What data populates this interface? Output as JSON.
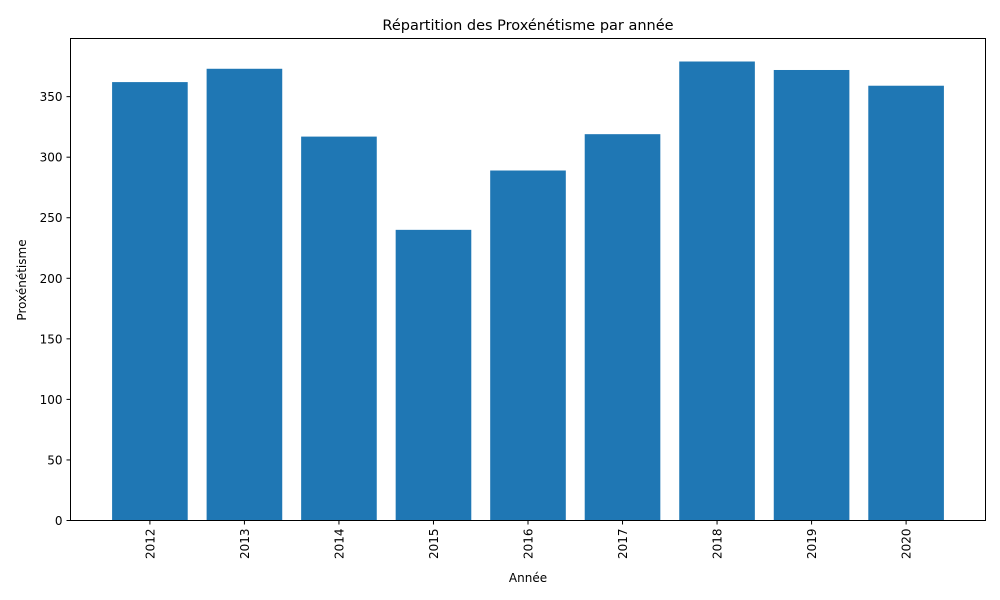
{
  "chart_data": {
    "type": "bar",
    "title": "Répartition des Proxénétisme par année",
    "xlabel": "Année",
    "ylabel": "Proxénétisme",
    "categories": [
      "2012",
      "2013",
      "2014",
      "2015",
      "2016",
      "2017",
      "2018",
      "2019",
      "2020"
    ],
    "values": [
      362,
      373,
      317,
      240,
      289,
      319,
      379,
      372,
      359
    ],
    "ylim": [
      0,
      398
    ],
    "yticks": [
      0,
      50,
      100,
      150,
      200,
      250,
      300,
      350
    ],
    "grid": false,
    "legend": "none",
    "bar_color": "#1f77b4",
    "x_tick_rotation": "vertical"
  }
}
